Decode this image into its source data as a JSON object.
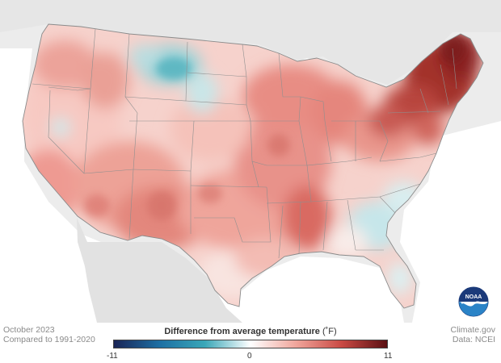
{
  "map": {
    "region": "Contiguous United States",
    "variable": "temperature anomaly",
    "colors": {
      "land_gray": "#ececec",
      "ocean": "#ffffff",
      "state_lines": "#8f8f8f",
      "cool": "#3aa7b8",
      "neutral": "#faf4f2",
      "warm": "#e8857c",
      "very_warm": "#8e2a2a"
    }
  },
  "footer": {
    "month": "October 2023",
    "baseline": "Compared to 1991-2020",
    "credit_site": "Climate.gov",
    "credit_data": "Data: NCEI"
  },
  "legend": {
    "title": "Difference from average temperature",
    "unit": "(˚F)",
    "min_label": "-11",
    "mid_label": "0",
    "max_label": "11",
    "range": [
      -11,
      11
    ],
    "colors": [
      "#1a2456",
      "#1d6fa3",
      "#3aa7b8",
      "#ffffff",
      "#f0a59b",
      "#c94a44",
      "#5a0f12"
    ]
  },
  "logo": {
    "name": "NOAA",
    "icon": "noaa-logo"
  }
}
